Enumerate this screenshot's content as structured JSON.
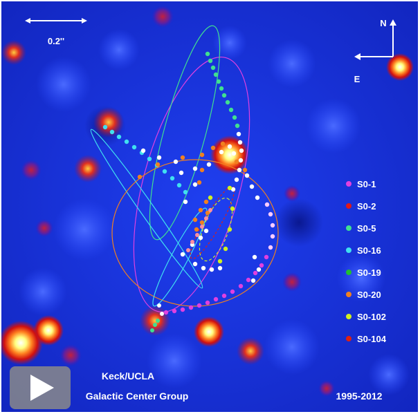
{
  "scale": {
    "label": "0.2''"
  },
  "compass": {
    "north": "N",
    "east": "E"
  },
  "legend": [
    {
      "name": "S0-1",
      "color": "#e040e0"
    },
    {
      "name": "S0-2",
      "color": "#e01818"
    },
    {
      "name": "S0-5",
      "color": "#40e090"
    },
    {
      "name": "S0-16",
      "color": "#40e0f0"
    },
    {
      "name": "S0-19",
      "color": "#20c030"
    },
    {
      "name": "S0-20",
      "color": "#f08020"
    },
    {
      "name": "S0-102",
      "color": "#d0f020"
    },
    {
      "name": "S0-104",
      "color": "#e02010"
    }
  ],
  "credit": {
    "line1": "Keck/UCLA",
    "line2": "Galactic Center Group"
  },
  "years": "1995-2012",
  "controls": {
    "play_icon": "play-icon"
  },
  "colors": {
    "background": "#1530d8",
    "orbit_white": "#ffffff"
  }
}
